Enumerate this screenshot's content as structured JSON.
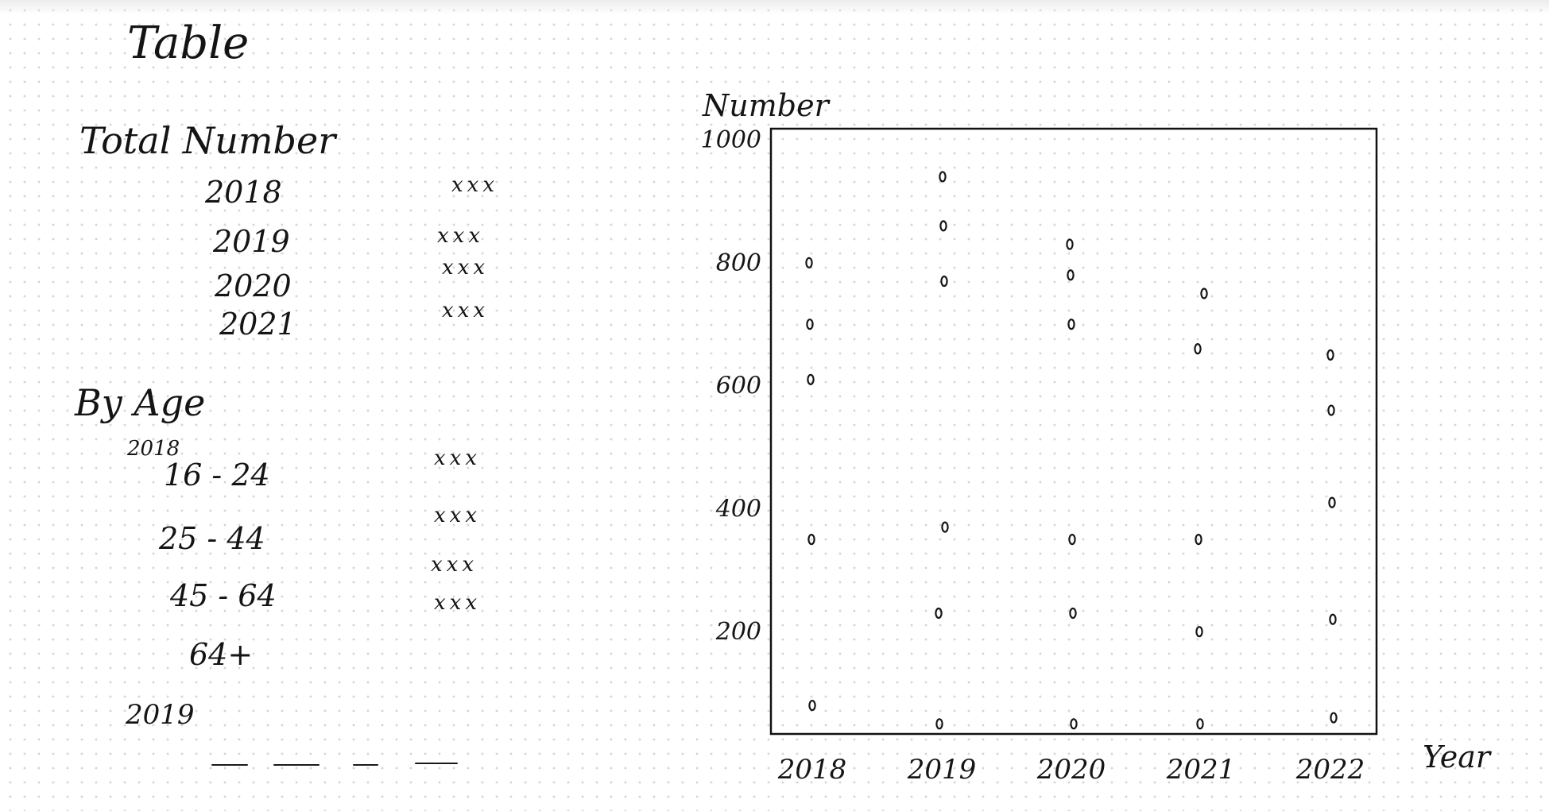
{
  "table": {
    "title": "Table",
    "total": {
      "heading": "Total Number",
      "rows": [
        {
          "label": "2018",
          "value": "xxx"
        },
        {
          "label": "2019",
          "value": "xxx"
        },
        {
          "label": "2020",
          "value": "xxx"
        },
        {
          "label": "2021",
          "value": "xxx"
        }
      ]
    },
    "by_age": {
      "heading": "By Age",
      "year_note": "2018",
      "rows": [
        {
          "label": "16 - 24",
          "value": "xxx"
        },
        {
          "label": "25 - 44",
          "value": "xxx"
        },
        {
          "label": "",
          "value": "xxx"
        },
        {
          "label": "45 - 64",
          "value": "xxx"
        },
        {
          "label": "64+",
          "value": ""
        }
      ],
      "next_year": "2019"
    }
  },
  "chart_data": {
    "type": "scatter",
    "title": "",
    "xlabel": "Year",
    "ylabel": "Number",
    "x_ticks": [
      "2018",
      "2019",
      "2020",
      "2021",
      "2022"
    ],
    "y_ticks": [
      200,
      400,
      600,
      800,
      1000
    ],
    "xlim": [
      2018,
      2022
    ],
    "ylim": [
      0,
      1000
    ],
    "grid": false,
    "points": [
      {
        "x": 2018,
        "y": 800
      },
      {
        "x": 2018,
        "y": 700
      },
      {
        "x": 2018,
        "y": 610
      },
      {
        "x": 2018,
        "y": 350
      },
      {
        "x": 2018,
        "y": 80
      },
      {
        "x": 2019,
        "y": 940
      },
      {
        "x": 2019,
        "y": 860
      },
      {
        "x": 2019,
        "y": 770
      },
      {
        "x": 2019,
        "y": 370
      },
      {
        "x": 2019,
        "y": 230
      },
      {
        "x": 2019,
        "y": 50
      },
      {
        "x": 2020,
        "y": 830
      },
      {
        "x": 2020,
        "y": 780
      },
      {
        "x": 2020,
        "y": 700
      },
      {
        "x": 2020,
        "y": 350
      },
      {
        "x": 2020,
        "y": 230
      },
      {
        "x": 2020,
        "y": 50
      },
      {
        "x": 2021,
        "y": 750
      },
      {
        "x": 2021,
        "y": 660
      },
      {
        "x": 2021,
        "y": 350
      },
      {
        "x": 2021,
        "y": 200
      },
      {
        "x": 2021,
        "y": 50
      },
      {
        "x": 2022,
        "y": 650
      },
      {
        "x": 2022,
        "y": 560
      },
      {
        "x": 2022,
        "y": 410
      },
      {
        "x": 2022,
        "y": 220
      },
      {
        "x": 2022,
        "y": 60
      }
    ]
  }
}
